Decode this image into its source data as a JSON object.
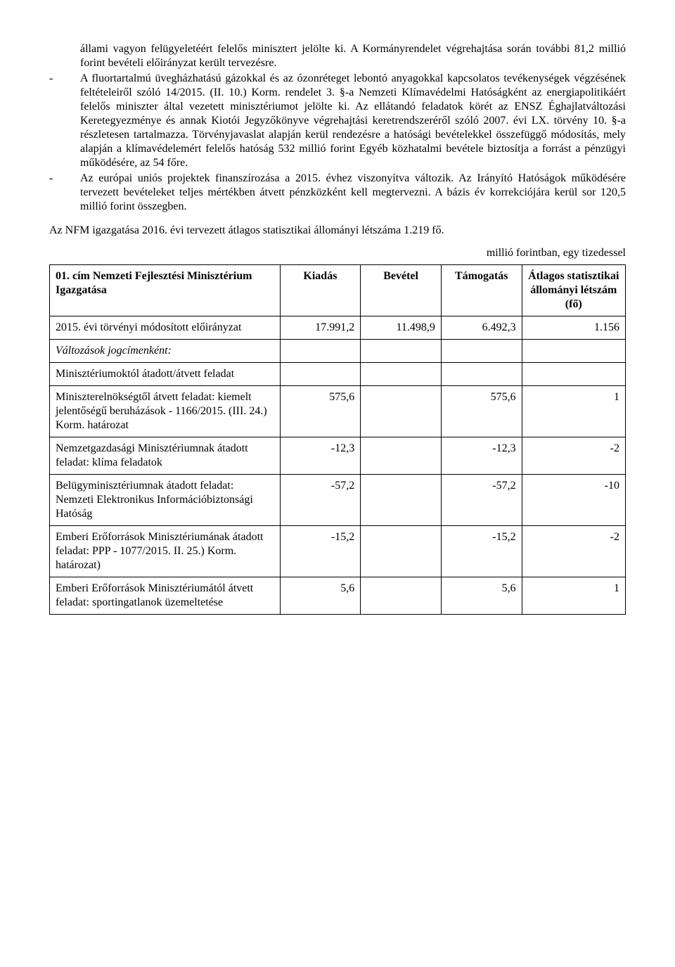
{
  "paragraphs": {
    "p1": "állami vagyon felügyeletéért felelős minisztert jelölte ki. A Kormányrendelet végrehajtása során további 81,2 millió forint bevételi előirányzat került tervezésre.",
    "p2": "A fluortartalmú üvegházhatású gázokkal és az ózonréteget lebontó anyagokkal kapcsolatos tevékenységek végzésének feltételeiről szóló 14/2015. (II. 10.) Korm. rendelet 3. §-a Nemzeti Klímavédelmi Hatóságként az energiapolitikáért felelős miniszter által vezetett minisztériumot jelölte ki. Az ellátandó feladatok körét az ENSZ Éghajlatváltozási Keretegyezménye és annak Kiotói Jegyzőkönyve végrehajtási keretrendszeréről szóló 2007. évi LX. törvény 10. §-a részletesen tartalmazza. Törvényjavaslat alapján kerül rendezésre a hatósági bevételekkel összefüggő módosítás, mely alapján a klímavédelemért felelős hatóság 532 millió forint Egyéb közhatalmi bevétele biztosítja a forrást a pénzügyi működésére, az 54 főre.",
    "p3": "Az európai uniós projektek finanszírozása a 2015. évhez viszonyítva változik. Az Irányító Hatóságok működésére tervezett bevételeket teljes mértékben átvett pénzközként kell megtervezni. A bázis év korrekciójára kerül sor 120,5 millió forint összegben.",
    "p4": "Az NFM igazgatása 2016. évi tervezett átlagos statisztikai állományi létszáma 1.219 fő.",
    "unit_note": "millió forintban, egy tizedessel"
  },
  "table": {
    "title": "01. cím Nemzeti Fejlesztési Minisztérium Igazgatása",
    "columns": [
      "Kiadás",
      "Bevétel",
      "Támogatás",
      "Átlagos statisztikai állományi létszám (fő)"
    ],
    "rows": [
      {
        "label": "2015. évi törvényi módosított előirányzat",
        "italic": false,
        "values": [
          "17.991,2",
          "11.498,9",
          "6.492,3",
          "1.156"
        ]
      },
      {
        "label": "Változások jogcímenként:",
        "italic": true,
        "values": [
          "",
          "",
          "",
          ""
        ]
      },
      {
        "label": "Minisztériumoktól átadott/átvett feladat",
        "italic": false,
        "values": [
          "",
          "",
          "",
          ""
        ]
      },
      {
        "label": "Miniszterelnökségtől átvett feladat: kiemelt jelentőségű beruházások - 1166/2015. (III. 24.) Korm. határozat",
        "italic": false,
        "values": [
          "575,6",
          "",
          "575,6",
          "1"
        ]
      },
      {
        "label": "Nemzetgazdasági Minisztériumnak átadott feladat: klíma feladatok",
        "italic": false,
        "values": [
          "-12,3",
          "",
          "-12,3",
          "-2"
        ]
      },
      {
        "label": "Belügyminisztériumnak átadott feladat: Nemzeti Elektronikus Információbiztonsági Hatóság",
        "italic": false,
        "values": [
          "-57,2",
          "",
          "-57,2",
          "-10"
        ]
      },
      {
        "label": "Emberi Erőforrások Minisztériumának átadott feladat: PPP - 1077/2015. II. 25.) Korm. határozat)",
        "italic": false,
        "values": [
          "-15,2",
          "",
          "-15,2",
          "-2"
        ]
      },
      {
        "label": "Emberi Erőforrások Minisztériumától átvett feladat: sportingatlanok üzemeltetése",
        "italic": false,
        "values": [
          "5,6",
          "",
          "5,6",
          "1"
        ]
      }
    ],
    "col_widths": [
      "40%",
      "14%",
      "14%",
      "14%",
      "18%"
    ]
  }
}
